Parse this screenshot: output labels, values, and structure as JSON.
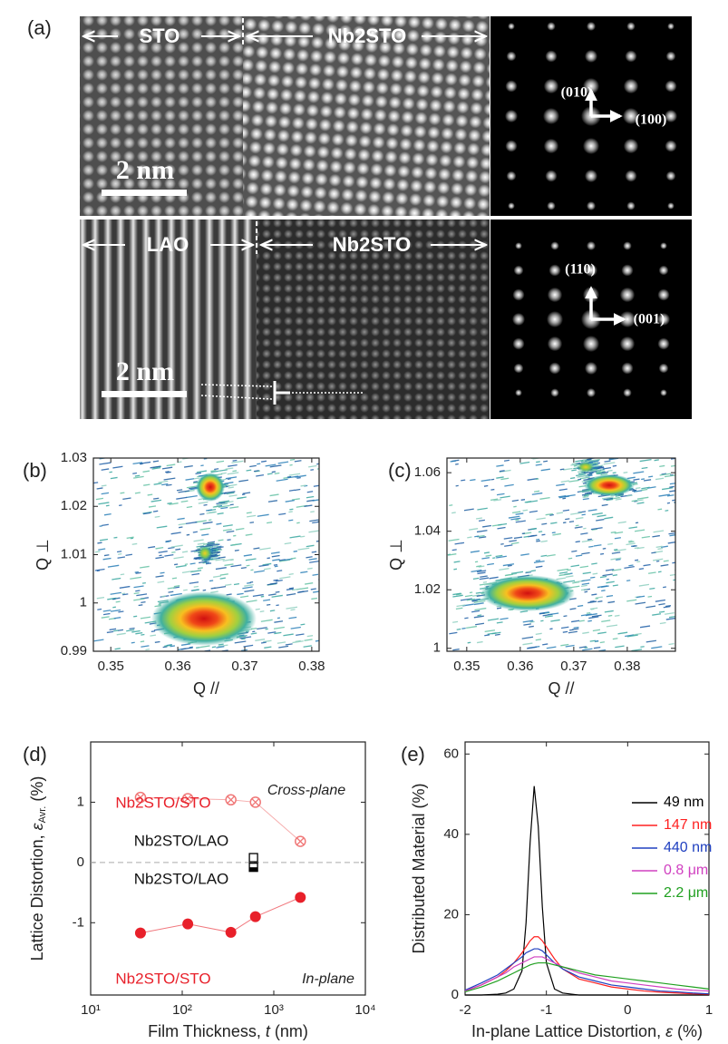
{
  "panel_labels": [
    "(a)",
    "(b)",
    "(c)",
    "(d)",
    "(e)"
  ],
  "panel_a": {
    "top": {
      "left": "STO",
      "right": "Nb2STO",
      "scale_bar": "2 nm",
      "fft_up": "(010)",
      "fft_right": "(100)"
    },
    "bottom": {
      "left": "LAO",
      "right": "Nb2STO",
      "scale_bar": "2 nm",
      "fft_up": "(110)",
      "fft_right": "(001)"
    }
  },
  "chart_data": [
    {
      "type": "map",
      "xlabel": "Q //",
      "ylabel": "Q ⊥",
      "xlim": [
        0.3474,
        0.3811
      ],
      "ylim": [
        0.99,
        1.03
      ],
      "xticks": [
        0.35,
        0.36,
        0.37,
        0.38
      ],
      "yticks": [
        0.99,
        1,
        1.01,
        1.02,
        1.03
      ]
    },
    {
      "type": "map",
      "xlabel": "Q //",
      "ylabel": "Q ⊥",
      "xlim": [
        0.3463,
        0.389
      ],
      "ylim": [
        0.999,
        1.065
      ],
      "xticks": [
        0.35,
        0.36,
        0.37,
        0.38
      ],
      "yticks": [
        1,
        1.02,
        1.04,
        1.06
      ]
    },
    {
      "type": "scatter",
      "log_x": true,
      "xlabel": [
        "Film Thickness, ",
        "t",
        " (nm)"
      ],
      "ylabel": [
        "Lattice Distortion, ",
        "ε",
        "Avr.",
        " (%)"
      ],
      "annotations": [
        "Cross-plane",
        "In-plane"
      ],
      "xlim": [
        10,
        10000
      ],
      "ylim": [
        -2.2,
        2
      ],
      "xticks": [
        {
          "value": 10,
          "label": "10¹"
        },
        {
          "value": 100,
          "label": "10²"
        },
        {
          "value": 1000,
          "label": "10³"
        },
        {
          "value": 10000,
          "label": "10⁴"
        }
      ],
      "yticks": [
        -1,
        0,
        1
      ],
      "series": [
        {
          "name": "Nb2STO/STO",
          "color": "#f07878",
          "marker": "circle-cross",
          "x": [
            35,
            115,
            340,
            630,
            1950
          ],
          "values": [
            1.08,
            1.06,
            1.04,
            1.0,
            0.35
          ]
        },
        {
          "name": "Nb2STO/LAO",
          "color": "#000000",
          "marker": "square-open",
          "x": [
            600
          ],
          "values": [
            0.08
          ]
        },
        {
          "name": "Nb2STO/LAO",
          "color": "#000000",
          "marker": "square-half",
          "x": [
            600
          ],
          "values": [
            -0.08
          ]
        },
        {
          "name": "Nb2STO/STO",
          "color": "#e8202a",
          "marker": "circle",
          "x": [
            35,
            115,
            340,
            630,
            1950
          ],
          "values": [
            -1.17,
            -1.02,
            -1.16,
            -0.9,
            -0.58
          ]
        }
      ]
    },
    {
      "type": "line",
      "xlabel": [
        "In-plane Lattice Distortion, ",
        "ε",
        " (%)"
      ],
      "ylabel": "Distributed Material (%)",
      "xlim": [
        -2,
        1
      ],
      "ylim": [
        0,
        63
      ],
      "xticks": [
        -2,
        -1,
        0,
        1
      ],
      "yticks": [
        0,
        20,
        40,
        60
      ],
      "x": [
        -2,
        -1.8,
        -1.6,
        -1.5,
        -1.4,
        -1.3,
        -1.25,
        -1.2,
        -1.15,
        -1.1,
        -1.05,
        -1,
        -0.9,
        -0.8,
        -0.6,
        -0.4,
        -0.2,
        0,
        0.2,
        0.4,
        0.6,
        0.8,
        1
      ],
      "series": [
        {
          "name": "49 nm",
          "color": "#000000",
          "values": [
            0,
            0,
            0.2,
            0.5,
            1.5,
            6,
            18,
            38,
            52,
            42,
            22,
            8,
            1.5,
            0.5,
            0,
            0,
            0,
            0,
            0,
            0,
            0,
            0,
            0
          ]
        },
        {
          "name": "147 nm",
          "color": "#ff2020",
          "values": [
            1,
            2.5,
            4.5,
            6,
            8,
            10.5,
            12,
            13.5,
            14.5,
            14.5,
            13.5,
            12,
            9,
            6.5,
            4,
            3,
            2,
            1.5,
            1,
            0.7,
            0.5,
            0.3,
            0.2
          ]
        },
        {
          "name": "440 nm",
          "color": "#2040c0",
          "values": [
            1.2,
            3,
            5,
            6.5,
            8,
            9.5,
            10.5,
            11,
            11.5,
            11.5,
            11,
            10,
            8,
            6.5,
            4.5,
            3.5,
            2.5,
            2,
            1.5,
            1,
            0.8,
            0.5,
            0.3
          ]
        },
        {
          "name": "0.8 μm",
          "color": "#d040c0",
          "values": [
            1,
            2.5,
            4.5,
            5.5,
            7,
            8,
            8.5,
            9,
            9.5,
            9.5,
            9.5,
            9,
            8,
            7,
            5.5,
            4.5,
            3.5,
            3,
            2.5,
            2,
            1.5,
            1.2,
            1
          ]
        },
        {
          "name": "2.2 μm",
          "color": "#20a020",
          "values": [
            0.8,
            2,
            3.5,
            4.5,
            5.5,
            6.5,
            7,
            7.5,
            7.8,
            8,
            8,
            8,
            7.5,
            7,
            6,
            5,
            4.5,
            4,
            3.5,
            3,
            2.5,
            2,
            1.5
          ]
        }
      ]
    }
  ]
}
